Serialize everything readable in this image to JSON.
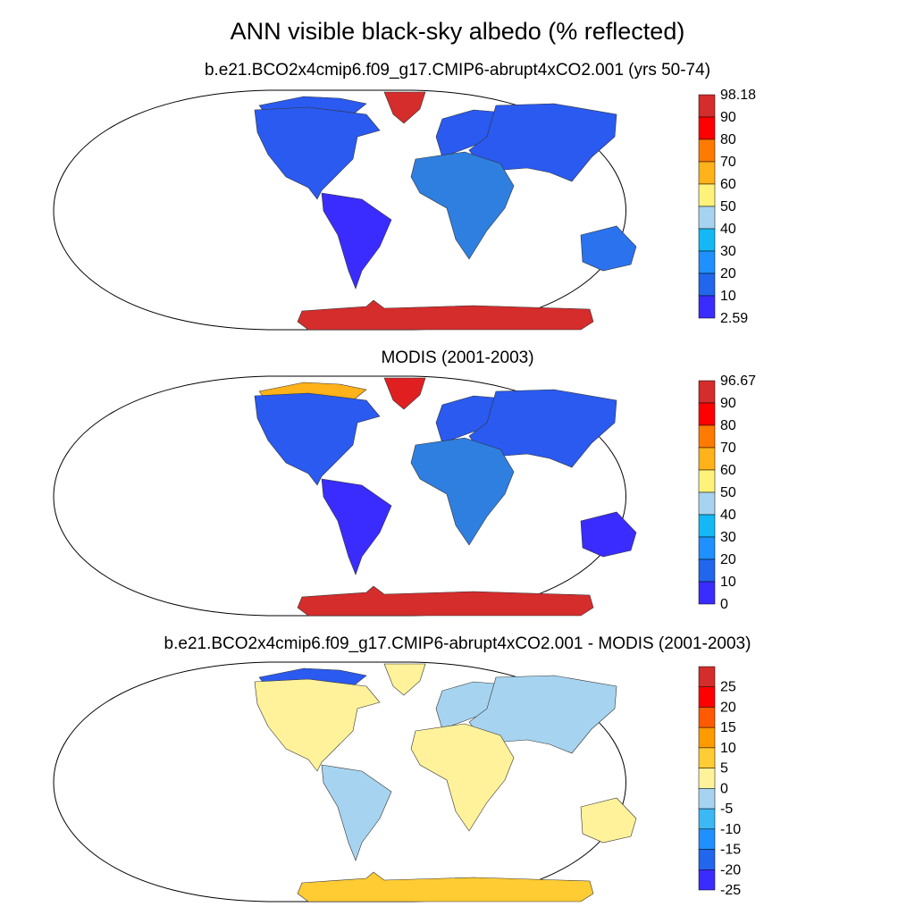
{
  "title": "ANN visible black-sky albedo (% reflected)",
  "panels": [
    {
      "title": "b.e21.BCO2x4cmip6.f09_g17.CMIP6-abrupt4xCO2.001 (yrs 50-74)",
      "colorbar": {
        "labels": [
          "98.18",
          "90",
          "80",
          "70",
          "60",
          "50",
          "40",
          "30",
          "20",
          "10",
          "2.59"
        ],
        "colors": [
          "#d52c2c",
          "#ff0000",
          "#ff7a00",
          "#ffb21a",
          "#fff27a",
          "#a6d4f0",
          "#13b8f5",
          "#1e90ff",
          "#2266ee",
          "#3a2cff"
        ]
      },
      "regions": {
        "greenland": "#d52c2c",
        "antarctica": "#d52c2c",
        "north_america": "#2a5aef",
        "south_america": "#3a2cff",
        "europe": "#2a5aef",
        "asia": "#2a5aef",
        "africa": "#2f7fe0",
        "australia": "#2a72ee",
        "arctic_islands": "#2a5aef"
      }
    },
    {
      "title": "MODIS (2001-2003)",
      "colorbar": {
        "labels": [
          "96.67",
          "90",
          "80",
          "70",
          "60",
          "50",
          "40",
          "30",
          "20",
          "10",
          "0"
        ],
        "colors": [
          "#d52c2c",
          "#ff0000",
          "#ff7a00",
          "#ffb21a",
          "#fff27a",
          "#a6d4f0",
          "#13b8f5",
          "#1e90ff",
          "#2266ee",
          "#3a2cff"
        ]
      },
      "regions": {
        "greenland": "#e02020",
        "antarctica": "#d52c2c",
        "north_america": "#2a5aef",
        "south_america": "#3a2cff",
        "europe": "#2a5aef",
        "asia": "#2a5aef",
        "africa": "#2f7fe0",
        "australia": "#3a2cff",
        "arctic_islands": "#ffb21a"
      }
    },
    {
      "title": "b.e21.BCO2x4cmip6.f09_g17.CMIP6-abrupt4xCO2.001 - MODIS (2001-2003)",
      "colorbar": {
        "labels": [
          "25",
          "20",
          "15",
          "10",
          "5",
          "0",
          "-5",
          "-10",
          "-15",
          "-20",
          "-25"
        ],
        "colors": [
          "#d52c2c",
          "#ff0000",
          "#ff5a00",
          "#ff9a00",
          "#ffcc33",
          "#fff29a",
          "#a6d4f0",
          "#3cb8f5",
          "#1e90ff",
          "#2266ee",
          "#3a2cff"
        ]
      },
      "regions": {
        "greenland": "#fff29a",
        "antarctica": "#ffcc33",
        "north_america": "#fff29a",
        "south_america": "#a6d4f0",
        "europe": "#a6d4f0",
        "asia": "#a6d4f0",
        "africa": "#fff29a",
        "australia": "#fff29a",
        "arctic_islands": "#2a5aef"
      }
    }
  ]
}
